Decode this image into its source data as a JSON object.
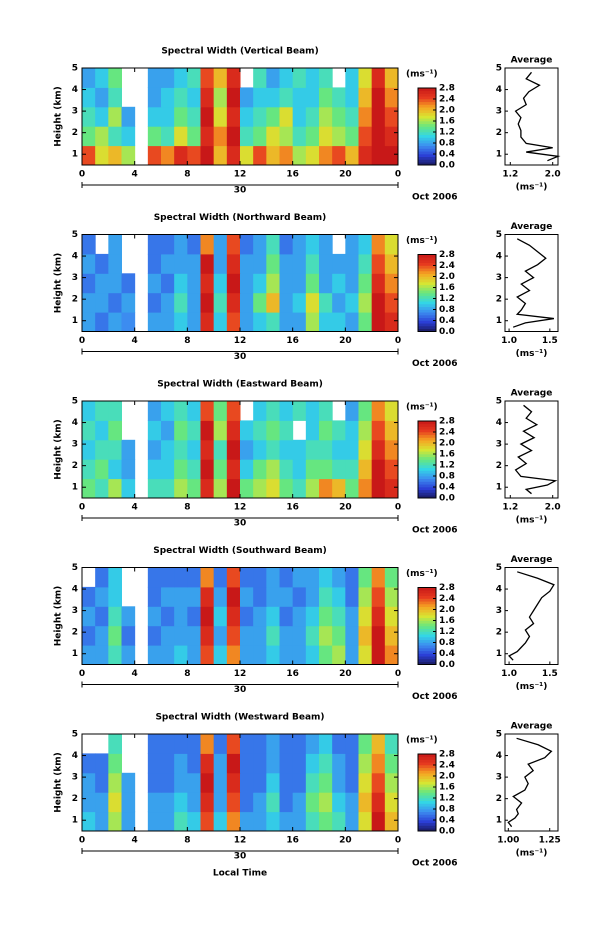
{
  "chart_data": [
    {
      "type": "heatmap",
      "title": "Spectral Width (Vertical Beam)",
      "ylabel": "Height (km)",
      "xlim": [
        0,
        24
      ],
      "ylim": [
        0.5,
        5
      ],
      "xticks": [
        0,
        4,
        8,
        12,
        16,
        20,
        {
          "value": 24,
          "label": "0"
        }
      ],
      "yticks": [
        1,
        2,
        3,
        4,
        5
      ],
      "day_label": "30",
      "month_label": "Oct 2006",
      "colorbar_label": "(ms⁻¹)",
      "clim": [
        0,
        2.8
      ],
      "colorbar_ticks": [
        {
          "value": 0,
          "label": "0.0"
        },
        0.4,
        0.8,
        1.2,
        1.6,
        {
          "value": 2,
          "label": "2.0"
        },
        2.4,
        2.8
      ],
      "colormap": [
        "#1a1a5e",
        "#2b3fd6",
        "#3c8cf0",
        "#33d6e6",
        "#66e680",
        "#d6e633",
        "#f5a623",
        "#e63a1f",
        "#c81818"
      ],
      "z": [
        [
          2.4,
          1.8,
          2.0,
          1.6,
          null,
          2.4,
          2.2,
          2.6,
          2.4,
          2.8,
          2.0,
          2.6,
          1.8,
          2.4,
          2.0,
          2.2,
          1.6,
          1.8,
          2.2,
          2.4,
          2.0,
          2.6,
          2.8,
          2.8
        ],
        [
          1.4,
          1.6,
          1.2,
          1.0,
          null,
          1.4,
          1.2,
          1.8,
          1.4,
          2.6,
          2.2,
          2.8,
          1.2,
          1.4,
          1.8,
          1.6,
          1.2,
          1.4,
          1.8,
          1.6,
          1.4,
          2.4,
          2.8,
          2.6
        ],
        [
          1.2,
          1.0,
          1.6,
          0.8,
          null,
          1.0,
          1.0,
          1.4,
          1.2,
          2.8,
          1.8,
          2.6,
          1.0,
          1.2,
          1.4,
          1.8,
          1.0,
          1.2,
          1.6,
          1.4,
          1.2,
          2.2,
          2.8,
          2.4
        ],
        [
          1.0,
          0.8,
          1.2,
          null,
          null,
          0.8,
          1.0,
          1.2,
          1.0,
          2.6,
          1.6,
          2.8,
          0.8,
          1.0,
          1.0,
          1.2,
          1.0,
          1.0,
          1.4,
          1.2,
          1.0,
          2.0,
          2.8,
          2.2
        ],
        [
          0.8,
          1.0,
          1.4,
          null,
          null,
          0.8,
          0.8,
          1.0,
          1.2,
          2.4,
          2.0,
          2.6,
          null,
          1.2,
          0.8,
          1.0,
          1.2,
          1.0,
          1.2,
          null,
          1.0,
          1.8,
          2.6,
          2.0
        ]
      ]
    },
    {
      "type": "line",
      "title": "Average",
      "xlabel": "(ms⁻¹)",
      "xlim": [
        1.1,
        2.1
      ],
      "ylim": [
        0.5,
        5
      ],
      "xticks": [
        1.2,
        {
          "value": 2,
          "label": "2.0"
        }
      ],
      "yticks": [
        1,
        2,
        3,
        4,
        5
      ],
      "y": [
        0.7,
        0.9,
        1.1,
        1.3,
        1.5,
        1.8,
        2.1,
        2.4,
        2.7,
        3.0,
        3.3,
        3.6,
        3.9,
        4.2,
        4.5,
        4.8
      ],
      "values": [
        1.9,
        2.1,
        1.5,
        2.0,
        1.5,
        1.4,
        1.4,
        1.35,
        1.4,
        1.3,
        1.5,
        1.45,
        1.55,
        1.75,
        1.5,
        1.6
      ]
    },
    {
      "type": "heatmap",
      "title": "Spectral Width (Northward Beam)",
      "ylabel": "Height (km)",
      "xlim": [
        0,
        24
      ],
      "ylim": [
        0.5,
        5
      ],
      "xticks": [
        0,
        4,
        8,
        12,
        16,
        20,
        {
          "value": 24,
          "label": "0"
        }
      ],
      "yticks": [
        1,
        2,
        3,
        4,
        5
      ],
      "day_label": "30",
      "month_label": "Oct 2006",
      "colorbar_label": "(ms⁻¹)",
      "clim": [
        0,
        2.8
      ],
      "colorbar_ticks": [
        {
          "value": 0,
          "label": "0.0"
        },
        0.4,
        0.8,
        1.2,
        1.6,
        {
          "value": 2,
          "label": "2.0"
        },
        2.4,
        2.8
      ],
      "colormap": [
        "#1a1a5e",
        "#2b3fd6",
        "#3c8cf0",
        "#33d6e6",
        "#66e680",
        "#d6e633",
        "#f5a623",
        "#e63a1f",
        "#c81818"
      ],
      "z": [
        [
          0.8,
          0.6,
          0.8,
          0.7,
          null,
          0.8,
          0.8,
          1.0,
          0.8,
          2.6,
          1.0,
          2.4,
          0.8,
          1.0,
          1.2,
          0.8,
          0.8,
          1.6,
          1.0,
          1.0,
          0.8,
          1.4,
          2.8,
          2.6
        ],
        [
          0.8,
          0.8,
          0.6,
          0.8,
          null,
          0.6,
          0.8,
          1.2,
          0.8,
          2.8,
          1.2,
          2.6,
          0.8,
          1.4,
          2.0,
          0.8,
          1.0,
          1.8,
          1.2,
          0.8,
          1.0,
          1.6,
          2.8,
          2.4
        ],
        [
          0.6,
          0.8,
          0.8,
          0.6,
          null,
          0.8,
          0.6,
          1.0,
          0.8,
          2.6,
          1.0,
          2.8,
          0.8,
          1.0,
          1.6,
          0.8,
          0.8,
          1.4,
          0.8,
          1.0,
          0.8,
          1.4,
          2.6,
          2.2
        ],
        [
          0.8,
          0.6,
          0.8,
          null,
          null,
          0.6,
          0.8,
          0.8,
          0.8,
          2.8,
          0.8,
          2.6,
          0.8,
          0.8,
          1.4,
          0.8,
          0.8,
          1.2,
          0.8,
          0.8,
          0.8,
          1.2,
          2.4,
          2.0
        ],
        [
          0.6,
          null,
          0.8,
          null,
          null,
          0.6,
          0.6,
          0.8,
          0.6,
          2.2,
          0.8,
          2.4,
          0.6,
          0.8,
          1.2,
          0.6,
          0.8,
          1.0,
          0.8,
          null,
          0.8,
          1.0,
          2.2,
          1.8
        ]
      ]
    },
    {
      "type": "line",
      "title": "Average",
      "xlabel": "(ms⁻¹)",
      "xlim": [
        0.95,
        1.6
      ],
      "ylim": [
        0.5,
        5
      ],
      "xticks": [
        {
          "value": 1,
          "label": "1.0"
        },
        1.5
      ],
      "yticks": [
        1,
        2,
        3,
        4,
        5
      ],
      "y": [
        0.7,
        0.9,
        1.1,
        1.3,
        1.5,
        1.8,
        2.1,
        2.4,
        2.7,
        3.0,
        3.3,
        3.6,
        3.9,
        4.2,
        4.5,
        4.8
      ],
      "values": [
        1.05,
        1.2,
        1.55,
        1.1,
        1.15,
        1.2,
        1.1,
        1.25,
        1.15,
        1.3,
        1.2,
        1.35,
        1.45,
        1.35,
        1.25,
        1.1
      ]
    },
    {
      "type": "heatmap",
      "title": "Spectral Width (Eastward Beam)",
      "ylabel": "Height (km)",
      "xlim": [
        0,
        24
      ],
      "ylim": [
        0.5,
        5
      ],
      "xticks": [
        0,
        4,
        8,
        12,
        16,
        20,
        {
          "value": 24,
          "label": "0"
        }
      ],
      "yticks": [
        1,
        2,
        3,
        4,
        5
      ],
      "day_label": "30",
      "month_label": "Oct 2006",
      "colorbar_label": "(ms⁻¹)",
      "clim": [
        0,
        2.8
      ],
      "colorbar_ticks": [
        {
          "value": 0,
          "label": "0.0"
        },
        0.4,
        0.8,
        1.2,
        1.6,
        {
          "value": 2,
          "label": "2.0"
        },
        2.4,
        2.8
      ],
      "colormap": [
        "#1a1a5e",
        "#2b3fd6",
        "#3c8cf0",
        "#33d6e6",
        "#66e680",
        "#d6e633",
        "#f5a623",
        "#e63a1f",
        "#c81818"
      ],
      "z": [
        [
          1.4,
          1.2,
          1.6,
          1.0,
          null,
          1.2,
          1.2,
          1.6,
          1.4,
          2.6,
          1.6,
          2.8,
          1.4,
          1.6,
          1.8,
          1.4,
          1.2,
          1.6,
          2.2,
          2.0,
          1.4,
          2.2,
          2.8,
          2.6
        ],
        [
          1.2,
          1.4,
          1.0,
          0.8,
          null,
          1.0,
          1.0,
          1.4,
          1.2,
          2.8,
          1.4,
          2.6,
          1.0,
          1.4,
          1.6,
          1.2,
          1.0,
          1.4,
          1.4,
          1.2,
          1.2,
          2.0,
          2.8,
          2.4
        ],
        [
          1.0,
          1.2,
          1.2,
          0.8,
          null,
          0.8,
          1.0,
          1.2,
          1.0,
          2.6,
          1.2,
          2.8,
          0.8,
          1.0,
          1.2,
          1.0,
          1.0,
          1.2,
          1.2,
          1.0,
          1.0,
          1.8,
          2.6,
          2.2
        ],
        [
          1.2,
          1.0,
          1.4,
          null,
          null,
          1.0,
          0.8,
          1.4,
          1.2,
          2.8,
          1.6,
          2.6,
          1.0,
          1.2,
          1.4,
          1.2,
          null,
          1.0,
          1.4,
          1.2,
          1.0,
          1.6,
          2.4,
          2.0
        ],
        [
          1.0,
          1.2,
          1.2,
          null,
          null,
          0.8,
          1.0,
          1.2,
          1.0,
          2.4,
          1.4,
          2.4,
          null,
          1.0,
          1.2,
          1.0,
          1.2,
          1.0,
          1.2,
          null,
          0.8,
          1.4,
          2.2,
          1.8
        ]
      ]
    },
    {
      "type": "line",
      "title": "Average",
      "xlabel": "(ms⁻¹)",
      "xlim": [
        1.1,
        2.1
      ],
      "ylim": [
        0.5,
        5
      ],
      "xticks": [
        1.2,
        {
          "value": 2,
          "label": "2.0"
        }
      ],
      "yticks": [
        1,
        2,
        3,
        4,
        5
      ],
      "y": [
        0.7,
        0.9,
        1.1,
        1.3,
        1.5,
        1.8,
        2.1,
        2.4,
        2.7,
        3.0,
        3.3,
        3.6,
        3.9,
        4.2,
        4.5,
        4.8
      ],
      "values": [
        1.6,
        1.5,
        1.9,
        2.05,
        1.4,
        1.3,
        1.5,
        1.35,
        1.6,
        1.4,
        1.65,
        1.45,
        1.7,
        1.5,
        1.6,
        1.45
      ]
    },
    {
      "type": "heatmap",
      "title": "Spectral Width (Southward Beam)",
      "ylabel": "Height (km)",
      "xlim": [
        0,
        24
      ],
      "ylim": [
        0.5,
        5
      ],
      "xticks": [
        0,
        4,
        8,
        12,
        16,
        20,
        {
          "value": 24,
          "label": "0"
        }
      ],
      "yticks": [
        1,
        2,
        3,
        4,
        5
      ],
      "day_label": "30",
      "month_label": "Oct 2006",
      "colorbar_label": "(ms⁻¹)",
      "clim": [
        0,
        2.8
      ],
      "colorbar_ticks": [
        {
          "value": 0,
          "label": "0.0"
        },
        0.4,
        0.8,
        1.2,
        1.6,
        {
          "value": 2,
          "label": "2.0"
        },
        2.4,
        2.8
      ],
      "colormap": [
        "#1a1a5e",
        "#2b3fd6",
        "#3c8cf0",
        "#33d6e6",
        "#66e680",
        "#d6e633",
        "#f5a623",
        "#e63a1f",
        "#c81818"
      ],
      "z": [
        [
          0.8,
          0.8,
          1.2,
          0.8,
          null,
          0.8,
          0.8,
          1.0,
          0.8,
          2.4,
          1.0,
          2.2,
          0.8,
          0.8,
          1.0,
          0.8,
          0.8,
          1.0,
          1.4,
          1.6,
          0.8,
          1.8,
          2.8,
          2.2
        ],
        [
          0.6,
          0.8,
          1.4,
          0.6,
          null,
          0.6,
          0.8,
          0.8,
          0.8,
          2.6,
          0.8,
          2.4,
          0.8,
          0.8,
          1.2,
          0.8,
          0.8,
          1.2,
          1.6,
          1.4,
          0.8,
          2.0,
          2.8,
          2.0
        ],
        [
          0.8,
          0.6,
          1.2,
          0.8,
          null,
          0.8,
          0.6,
          0.8,
          0.6,
          2.8,
          1.0,
          2.6,
          0.6,
          0.8,
          1.0,
          0.6,
          0.8,
          1.0,
          1.4,
          1.2,
          0.8,
          1.8,
          2.6,
          1.8
        ],
        [
          0.6,
          0.8,
          1.0,
          null,
          null,
          0.6,
          0.8,
          0.8,
          0.8,
          2.6,
          0.8,
          2.8,
          0.8,
          0.6,
          0.8,
          0.8,
          0.6,
          0.8,
          1.2,
          1.0,
          0.6,
          1.6,
          2.4,
          1.6
        ],
        [
          null,
          0.6,
          1.0,
          null,
          null,
          0.6,
          0.6,
          0.6,
          0.6,
          2.2,
          0.6,
          2.4,
          0.6,
          0.6,
          0.8,
          0.6,
          0.8,
          0.8,
          1.0,
          0.8,
          0.6,
          1.4,
          2.2,
          1.4
        ]
      ]
    },
    {
      "type": "line",
      "title": "Average",
      "xlabel": "(ms⁻¹)",
      "xlim": [
        0.95,
        1.6
      ],
      "ylim": [
        0.5,
        5
      ],
      "xticks": [
        {
          "value": 1,
          "label": "1.0"
        },
        1.5
      ],
      "yticks": [
        1,
        2,
        3,
        4,
        5
      ],
      "y": [
        0.7,
        0.9,
        1.1,
        1.3,
        1.5,
        1.8,
        2.1,
        2.4,
        2.7,
        3.0,
        3.3,
        3.6,
        3.9,
        4.2,
        4.5,
        4.8
      ],
      "values": [
        1.05,
        1.0,
        1.1,
        1.15,
        1.2,
        1.25,
        1.2,
        1.3,
        1.25,
        1.3,
        1.35,
        1.4,
        1.5,
        1.55,
        1.35,
        1.1
      ]
    },
    {
      "type": "heatmap",
      "title": "Spectral Width (Westward Beam)",
      "ylabel": "Height (km)",
      "xlabel": "Local Time",
      "xlim": [
        0,
        24
      ],
      "ylim": [
        0.5,
        5
      ],
      "xticks": [
        0,
        4,
        8,
        12,
        16,
        20,
        {
          "value": 24,
          "label": "0"
        }
      ],
      "yticks": [
        1,
        2,
        3,
        4,
        5
      ],
      "day_label": "30",
      "month_label": "Oct 2006",
      "colorbar_label": "(ms⁻¹)",
      "clim": [
        0,
        2.8
      ],
      "colorbar_ticks": [
        {
          "value": 0,
          "label": "0.0"
        },
        0.4,
        0.8,
        1.2,
        1.6,
        {
          "value": 2,
          "label": "2.0"
        },
        2.4,
        2.8
      ],
      "colormap": [
        "#1a1a5e",
        "#2b3fd6",
        "#3c8cf0",
        "#33d6e6",
        "#66e680",
        "#d6e633",
        "#f5a623",
        "#e63a1f",
        "#c81818"
      ],
      "z": [
        [
          1.0,
          0.8,
          1.6,
          0.8,
          null,
          0.8,
          0.8,
          1.2,
          1.0,
          2.4,
          1.0,
          2.2,
          0.8,
          0.8,
          1.0,
          0.8,
          0.8,
          1.2,
          1.4,
          1.2,
          0.8,
          1.8,
          2.8,
          2.0
        ],
        [
          0.8,
          0.8,
          1.8,
          0.8,
          null,
          0.8,
          0.8,
          1.0,
          0.8,
          2.6,
          0.8,
          2.4,
          0.6,
          0.8,
          1.2,
          0.6,
          0.8,
          1.4,
          1.6,
          1.0,
          0.8,
          2.0,
          2.6,
          1.8
        ],
        [
          0.8,
          0.6,
          1.6,
          0.8,
          null,
          0.6,
          0.6,
          0.8,
          0.8,
          2.8,
          0.8,
          2.6,
          0.6,
          0.6,
          1.0,
          0.6,
          0.6,
          1.2,
          1.4,
          0.8,
          0.6,
          1.8,
          2.4,
          1.6
        ],
        [
          0.6,
          0.6,
          1.4,
          null,
          null,
          0.6,
          0.6,
          0.8,
          0.6,
          2.6,
          0.8,
          2.8,
          0.6,
          0.6,
          0.8,
          0.6,
          0.6,
          1.0,
          1.2,
          0.8,
          0.6,
          1.6,
          2.2,
          1.4
        ],
        [
          null,
          null,
          1.2,
          null,
          null,
          0.6,
          0.6,
          0.6,
          0.6,
          2.2,
          0.6,
          2.4,
          0.6,
          0.6,
          0.8,
          0.6,
          0.6,
          0.8,
          1.0,
          0.6,
          0.6,
          1.4,
          2.0,
          1.2
        ]
      ]
    },
    {
      "type": "line",
      "title": "Average",
      "xlabel": "(ms⁻¹)",
      "xlim": [
        0.98,
        1.3
      ],
      "ylim": [
        0.5,
        5
      ],
      "xticks": [
        {
          "value": 1,
          "label": "1.00"
        },
        1.25
      ],
      "yticks": [
        1,
        2,
        3,
        4,
        5
      ],
      "y": [
        0.7,
        0.9,
        1.1,
        1.3,
        1.5,
        1.8,
        2.1,
        2.4,
        2.7,
        3.0,
        3.3,
        3.6,
        3.9,
        4.2,
        4.5,
        4.8
      ],
      "values": [
        1.02,
        1.0,
        1.04,
        1.06,
        1.05,
        1.08,
        1.03,
        1.1,
        1.12,
        1.1,
        1.15,
        1.12,
        1.22,
        1.26,
        1.18,
        1.05
      ]
    }
  ]
}
